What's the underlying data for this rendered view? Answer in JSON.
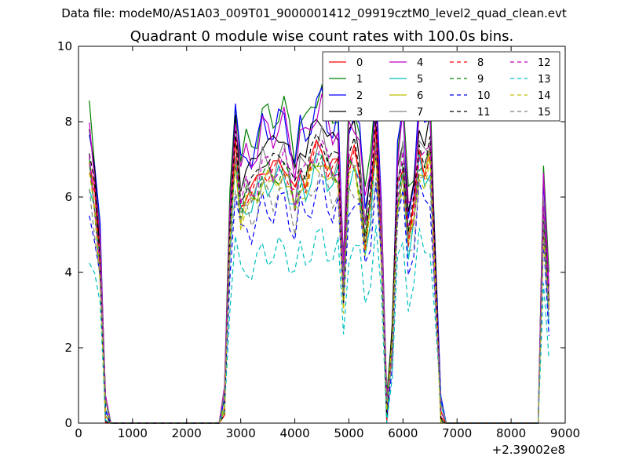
{
  "chart_data": {
    "type": "line",
    "suptitle": "Data file: modeM0/AS1A03_009T01_9000001412_09919cztM0_level2_quad_clean.evt",
    "title": "Quadrant 0 module wise count rates with 100.0s bins.",
    "xlabel": "",
    "ylabel": "",
    "x_offset_label": "+2.39002e8",
    "xlim": [
      0,
      9000
    ],
    "ylim": [
      0,
      10
    ],
    "xticks": [
      "0",
      "1000",
      "2000",
      "3000",
      "4000",
      "5000",
      "6000",
      "7000",
      "8000",
      "9000"
    ],
    "yticks": [
      "0",
      "2",
      "4",
      "6",
      "8",
      "10"
    ],
    "legend_position": "top-right",
    "x": [
      200,
      300,
      400,
      500,
      600,
      700,
      800,
      900,
      1000,
      1100,
      1200,
      1300,
      1400,
      1500,
      1600,
      1700,
      1800,
      1900,
      2000,
      2100,
      2200,
      2300,
      2400,
      2500,
      2600,
      2700,
      2800,
      2900,
      3000,
      3100,
      3200,
      3300,
      3400,
      3500,
      3600,
      3700,
      3800,
      3900,
      4000,
      4100,
      4200,
      4300,
      4400,
      4500,
      4600,
      4700,
      4800,
      4900,
      5000,
      5100,
      5200,
      5300,
      5400,
      5500,
      5600,
      5700,
      5800,
      5900,
      6000,
      6100,
      6200,
      6300,
      6400,
      6500,
      6600,
      6700,
      6800,
      6900,
      7000,
      7100,
      7200,
      7300,
      7400,
      7500,
      7600,
      7700,
      7800,
      7900,
      8000,
      8100,
      8200,
      8300,
      8400,
      8500,
      8600,
      8700
    ],
    "series": [
      {
        "name": "0",
        "color": "#ff0000",
        "dash": "solid",
        "level": 6.9
      },
      {
        "name": "1",
        "color": "#008000",
        "dash": "solid",
        "level": 8.3
      },
      {
        "name": "2",
        "color": "#0000ff",
        "dash": "solid",
        "level": 8.0
      },
      {
        "name": "3",
        "color": "#000000",
        "dash": "solid",
        "level": 7.6
      },
      {
        "name": "4",
        "color": "#bf00bf",
        "dash": "solid",
        "level": 7.9
      },
      {
        "name": "5",
        "color": "#00bfbf",
        "dash": "solid",
        "level": 6.5
      },
      {
        "name": "6",
        "color": "#bfbf00",
        "dash": "solid",
        "level": 6.6
      },
      {
        "name": "7",
        "color": "#808080",
        "dash": "solid",
        "level": 7.0
      },
      {
        "name": "8",
        "color": "#ff0000",
        "dash": "dashed",
        "level": 6.8
      },
      {
        "name": "9",
        "color": "#008000",
        "dash": "dashed",
        "level": 6.7
      },
      {
        "name": "10",
        "color": "#0000ff",
        "dash": "dashed",
        "level": 5.8
      },
      {
        "name": "11",
        "color": "#000000",
        "dash": "dashed",
        "level": 7.1
      },
      {
        "name": "12",
        "color": "#bf00bf",
        "dash": "dashed",
        "level": 6.9
      },
      {
        "name": "13",
        "color": "#00bfbf",
        "dash": "dashed",
        "level": 4.6
      },
      {
        "name": "14",
        "color": "#bfbf00",
        "dash": "dashed",
        "level": 6.4
      },
      {
        "name": "15",
        "color": "#808080",
        "dash": "dashed",
        "level": 6.2
      }
    ],
    "profile": [
      1.0,
      0.85,
      0.62,
      0.05,
      0,
      0,
      0,
      0,
      0,
      0,
      0,
      0,
      0,
      0,
      0,
      0,
      0,
      0,
      0,
      0,
      0,
      0,
      0,
      0,
      0,
      0.08,
      0.72,
      1.05,
      0.85,
      0.9,
      0.88,
      0.92,
      1.0,
      0.98,
      0.96,
      1.0,
      1.02,
      0.94,
      0.86,
      0.98,
      0.95,
      1.0,
      1.05,
      1.08,
      1.0,
      0.97,
      1.0,
      0.5,
      1.0,
      1.02,
      0.95,
      0.72,
      0.85,
      1.1,
      0.7,
      0.05,
      0.3,
      0.9,
      1.02,
      0.72,
      0.8,
      1.05,
      1.0,
      1.05,
      0.55,
      0.05,
      0,
      0,
      0,
      0,
      0,
      0,
      0,
      0,
      0,
      0,
      0,
      0,
      0,
      0,
      0,
      0,
      0,
      0,
      0.8,
      0.45
    ]
  }
}
